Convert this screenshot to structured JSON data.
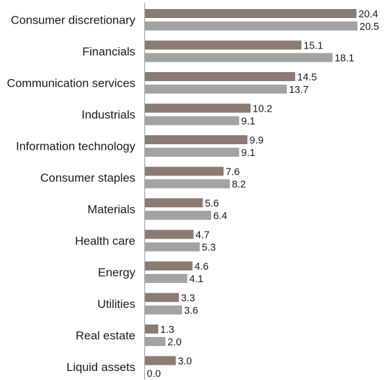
{
  "chart_data": {
    "type": "bar",
    "orientation": "horizontal",
    "categories": [
      "Consumer discretionary",
      "Financials",
      "Communication services",
      "Industrials",
      "Information technology",
      "Consumer staples",
      "Materials",
      "Health care",
      "Energy",
      "Utilities",
      "Real estate",
      "Liquid assets"
    ],
    "series": [
      {
        "color": "#8c7b72",
        "values": [
          20.4,
          15.1,
          14.5,
          10.2,
          9.9,
          7.6,
          5.6,
          4.7,
          4.6,
          3.3,
          1.3,
          3.0
        ],
        "labels": [
          "20.4",
          "15.1",
          "14.5",
          "10.2",
          "9.9",
          "7.6",
          "5.6",
          "4.7",
          "4.6",
          "3.3",
          "1.3",
          "3.0"
        ]
      },
      {
        "color": "#a3a3a3",
        "values": [
          20.5,
          18.1,
          13.7,
          9.1,
          9.1,
          8.2,
          6.4,
          5.3,
          4.1,
          3.6,
          2.0,
          0.0
        ],
        "labels": [
          "20.5",
          "18.1",
          "13.7",
          "9.1",
          "9.1",
          "8.2",
          "6.4",
          "5.3",
          "4.1",
          "3.6",
          "2.0",
          "0.0"
        ]
      }
    ],
    "xlim": [
      0,
      20.5
    ],
    "grid": false,
    "legend": "none",
    "title": "",
    "xlabel": "",
    "ylabel": ""
  }
}
